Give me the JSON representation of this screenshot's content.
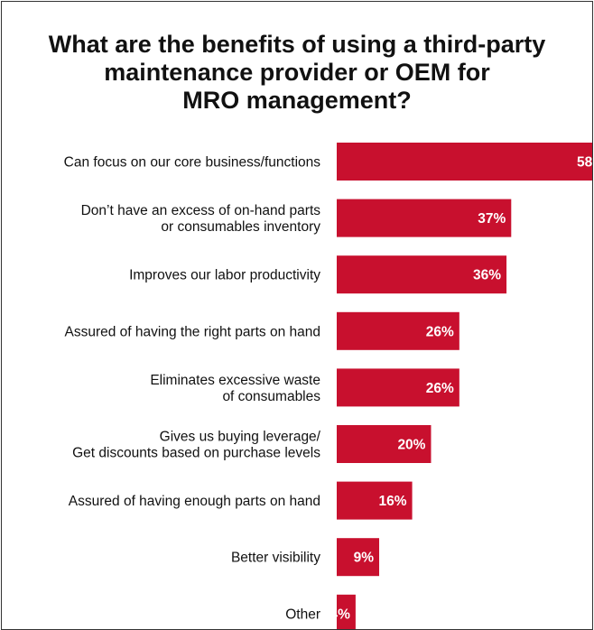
{
  "title_lines": [
    "What are the benefits of using a third-party",
    "maintenance provider or OEM for",
    "MRO management?"
  ],
  "colors": {
    "bar": "#c8102e",
    "text": "#111111",
    "value_text": "#ffffff"
  },
  "chart_data": {
    "type": "bar",
    "orientation": "horizontal",
    "title": "What are the benefits of using a third-party maintenance provider or OEM for MRO management?",
    "categories": [
      [
        "Can focus on our core business/functions"
      ],
      [
        "Don’t have an excess of on-hand parts",
        "or consumables inventory"
      ],
      [
        "Improves our labor productivity"
      ],
      [
        "Assured of having the right parts on hand"
      ],
      [
        "Eliminates excessive waste",
        "of consumables"
      ],
      [
        "Gives us buying leverage/",
        "Get discounts based on purchase levels"
      ],
      [
        "Assured of having enough parts on hand"
      ],
      [
        "Better visibility"
      ],
      [
        "Other"
      ]
    ],
    "values": [
      58,
      37,
      36,
      26,
      26,
      20,
      16,
      9,
      4
    ],
    "value_suffix": "%",
    "xlim": [
      0,
      58
    ],
    "grid": false,
    "legend": "none"
  }
}
